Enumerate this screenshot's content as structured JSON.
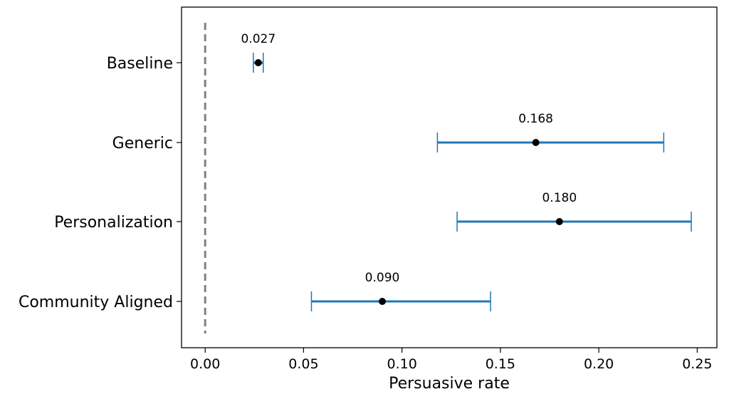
{
  "chart_data": {
    "type": "errorbar",
    "orientation": "horizontal",
    "title": "",
    "xlabel": "Persuasive rate",
    "ylabel": "",
    "xlim": [
      -0.012,
      0.26
    ],
    "xticks": [
      0.0,
      0.05,
      0.1,
      0.15,
      0.2,
      0.25
    ],
    "xtick_labels": [
      "0.00",
      "0.05",
      "0.10",
      "0.15",
      "0.20",
      "0.25"
    ],
    "grid": false,
    "reference_line": {
      "x": 0.0,
      "style": "dashed",
      "color": "#808080"
    },
    "categories": [
      "Baseline",
      "Generic",
      "Personalization",
      "Community Aligned"
    ],
    "series": [
      {
        "values": [
          0.027,
          0.168,
          0.18,
          0.09
        ],
        "ci_low": [
          0.0245,
          0.118,
          0.128,
          0.054
        ],
        "ci_high": [
          0.0295,
          0.233,
          0.247,
          0.145
        ],
        "value_labels": [
          "0.027",
          "0.168",
          "0.180",
          "0.090"
        ],
        "errorbar_color": "#1f77b4",
        "marker_color": "#000000"
      }
    ]
  }
}
